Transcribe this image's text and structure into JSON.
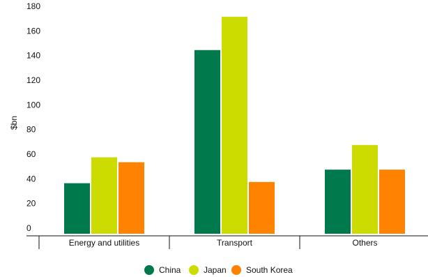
{
  "chart_data": {
    "type": "bar",
    "title": "",
    "xlabel": "",
    "ylabel": "$bn",
    "ylim": [
      0,
      180
    ],
    "yticks": [
      0,
      20,
      40,
      60,
      80,
      100,
      120,
      140,
      160,
      180
    ],
    "categories": [
      "Energy and utilities",
      "Transport",
      "Others"
    ],
    "series": [
      {
        "name": "China",
        "color": "#007a4d",
        "values": [
          41,
          149,
          52
        ]
      },
      {
        "name": "Japan",
        "color": "#cddc00",
        "values": [
          62,
          176,
          72
        ]
      },
      {
        "name": "South Korea",
        "color": "#ff8200",
        "values": [
          58,
          42,
          52
        ]
      }
    ],
    "grid": false,
    "legend_position": "bottom-center"
  }
}
